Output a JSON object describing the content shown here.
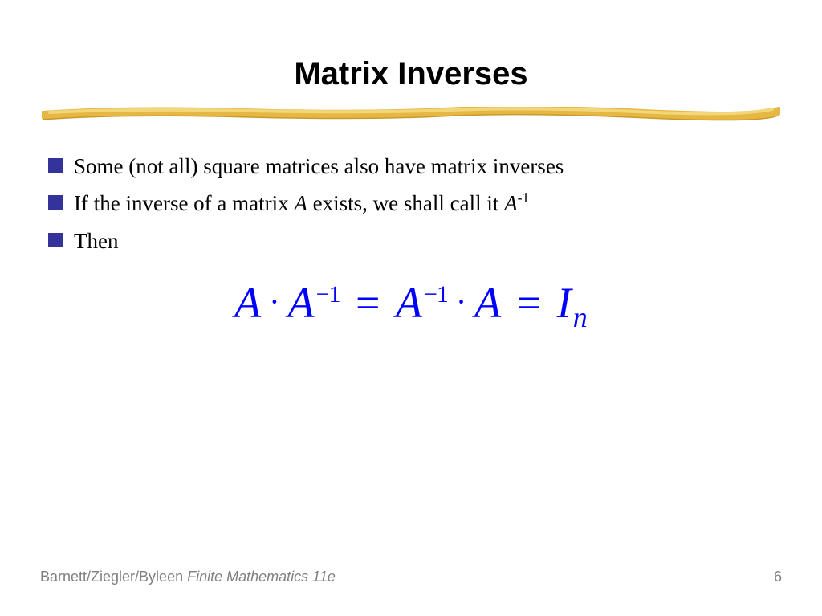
{
  "title": "Matrix Inverses",
  "underline": {
    "stroke_main": "#e6b843",
    "stroke_highlight": "#f2d67a",
    "stroke_shadow": "#c99a2a"
  },
  "bullets": {
    "marker_color": "#333399",
    "items": [
      {
        "text_html": "Some (not all) square matrices also have matrix inverses"
      },
      {
        "text_html": "If the inverse of a matrix <span class=\"italic\">A</span> exists, we shall call it <span class=\"italic\">A</span><span class=\"sup\">-1</span>"
      },
      {
        "text_html": "Then"
      }
    ]
  },
  "equation": {
    "color": "#0000ff",
    "fontsize": 54,
    "html": "<span>A</span><span class=\"dot\">·</span><span>A</span><span class=\"esup\">−1</span><span class=\"op\"> = </span><span>A</span><span class=\"esup\">−1</span><span class=\"dot\">·</span><span>A</span><span class=\"op\"> = </span><span>I</span><span class=\"esub\">n</span>"
  },
  "footer": {
    "authors": "Barnett/Ziegler/Byleen ",
    "book": "Finite Mathematics 11e",
    "page": "6",
    "color": "#808080"
  }
}
